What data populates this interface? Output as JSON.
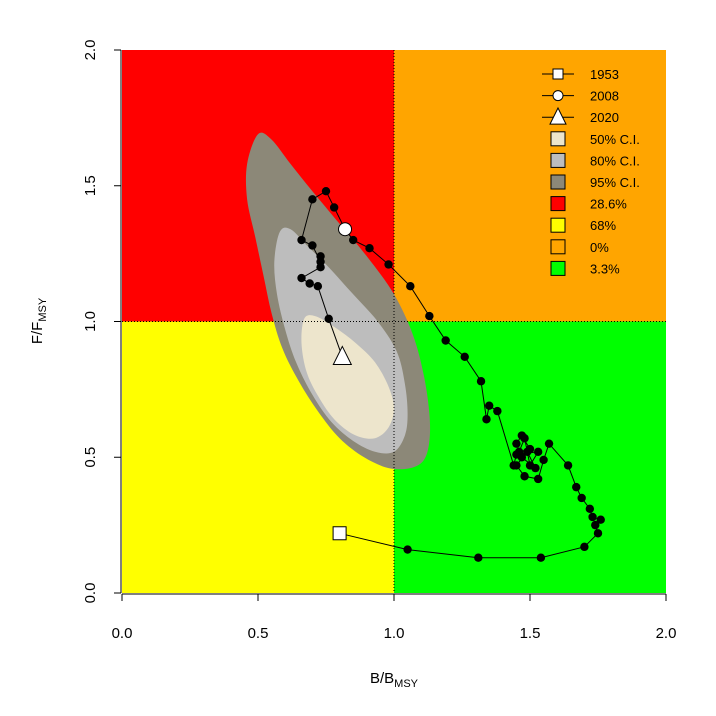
{
  "chart_data": {
    "type": "scatter",
    "xlabel": "B/B",
    "xlabel_sub": "MSY",
    "ylabel": "F/F",
    "ylabel_sub": "MSY",
    "xlim": [
      0,
      2
    ],
    "ylim": [
      0,
      2
    ],
    "x_ticks": [
      "0.0",
      "0.5",
      "1.0",
      "1.5",
      "2.0"
    ],
    "y_ticks": [
      "0.0",
      "0.5",
      "1.0",
      "1.5",
      "2.0"
    ],
    "reference_lines": {
      "x": 1.0,
      "y": 1.0
    },
    "quadrants": [
      {
        "name": "overfished-and-overfishing",
        "color": "#ff0000",
        "x": [
          0,
          1
        ],
        "y": [
          1,
          2
        ]
      },
      {
        "name": "overfishing-not-overfished",
        "color": "#ffa500",
        "x": [
          1,
          2
        ],
        "y": [
          1,
          2
        ]
      },
      {
        "name": "overfished-not-overfishing",
        "color": "#ffff00",
        "x": [
          0,
          1
        ],
        "y": [
          0,
          1
        ]
      },
      {
        "name": "healthy",
        "color": "#00ff00",
        "x": [
          1,
          2
        ],
        "y": [
          0,
          1
        ]
      }
    ],
    "confidence_regions": [
      {
        "label": "95% C.I.",
        "color": "#8c8878",
        "polygon": [
          [
            0.5,
            1.69
          ],
          [
            0.55,
            1.67
          ],
          [
            0.62,
            1.58
          ],
          [
            0.7,
            1.48
          ],
          [
            0.8,
            1.36
          ],
          [
            0.9,
            1.24
          ],
          [
            1.0,
            1.1
          ],
          [
            1.07,
            0.95
          ],
          [
            1.11,
            0.8
          ],
          [
            1.13,
            0.66
          ],
          [
            1.13,
            0.56
          ],
          [
            1.11,
            0.49
          ],
          [
            1.06,
            0.46
          ],
          [
            0.98,
            0.46
          ],
          [
            0.89,
            0.5
          ],
          [
            0.8,
            0.57
          ],
          [
            0.72,
            0.67
          ],
          [
            0.65,
            0.78
          ],
          [
            0.59,
            0.9
          ],
          [
            0.55,
            1.03
          ],
          [
            0.52,
            1.17
          ],
          [
            0.49,
            1.31
          ],
          [
            0.46,
            1.45
          ],
          [
            0.46,
            1.58
          ]
        ]
      },
      {
        "label": "80% C.I.",
        "color": "#bdbdbd",
        "polygon": [
          [
            0.58,
            1.33
          ],
          [
            0.62,
            1.34
          ],
          [
            0.68,
            1.28
          ],
          [
            0.76,
            1.2
          ],
          [
            0.85,
            1.1
          ],
          [
            0.94,
            1.0
          ],
          [
            1.01,
            0.89
          ],
          [
            1.04,
            0.77
          ],
          [
            1.05,
            0.66
          ],
          [
            1.04,
            0.58
          ],
          [
            1.0,
            0.52
          ],
          [
            0.93,
            0.52
          ],
          [
            0.85,
            0.56
          ],
          [
            0.77,
            0.63
          ],
          [
            0.7,
            0.73
          ],
          [
            0.64,
            0.85
          ],
          [
            0.6,
            0.97
          ],
          [
            0.57,
            1.1
          ],
          [
            0.56,
            1.22
          ]
        ]
      },
      {
        "label": "50% C.I.",
        "color": "#ede5cc",
        "polygon": [
          [
            0.67,
            1.01
          ],
          [
            0.71,
            1.02
          ],
          [
            0.78,
            0.98
          ],
          [
            0.86,
            0.92
          ],
          [
            0.93,
            0.85
          ],
          [
            0.98,
            0.76
          ],
          [
            1.0,
            0.68
          ],
          [
            0.98,
            0.61
          ],
          [
            0.93,
            0.57
          ],
          [
            0.86,
            0.58
          ],
          [
            0.79,
            0.63
          ],
          [
            0.73,
            0.71
          ],
          [
            0.68,
            0.81
          ],
          [
            0.66,
            0.92
          ]
        ]
      }
    ],
    "trajectory": [
      [
        0.8,
        0.22
      ],
      [
        1.05,
        0.16
      ],
      [
        1.31,
        0.13
      ],
      [
        1.54,
        0.13
      ],
      [
        1.7,
        0.17
      ],
      [
        1.75,
        0.22
      ],
      [
        1.74,
        0.25
      ],
      [
        1.76,
        0.27
      ],
      [
        1.73,
        0.28
      ],
      [
        1.72,
        0.31
      ],
      [
        1.69,
        0.35
      ],
      [
        1.67,
        0.39
      ],
      [
        1.64,
        0.47
      ],
      [
        1.57,
        0.55
      ],
      [
        1.55,
        0.49
      ],
      [
        1.53,
        0.42
      ],
      [
        1.48,
        0.43
      ],
      [
        1.45,
        0.47
      ],
      [
        1.49,
        0.52
      ],
      [
        1.52,
        0.46
      ],
      [
        1.47,
        0.5
      ],
      [
        1.45,
        0.55
      ],
      [
        1.47,
        0.58
      ],
      [
        1.5,
        0.53
      ],
      [
        1.46,
        0.52
      ],
      [
        1.48,
        0.57
      ],
      [
        1.5,
        0.47
      ],
      [
        1.53,
        0.52
      ],
      [
        1.45,
        0.51
      ],
      [
        1.44,
        0.47
      ],
      [
        1.38,
        0.67
      ],
      [
        1.35,
        0.69
      ],
      [
        1.34,
        0.64
      ],
      [
        1.32,
        0.78
      ],
      [
        1.26,
        0.87
      ],
      [
        1.19,
        0.93
      ],
      [
        1.13,
        1.02
      ],
      [
        1.06,
        1.13
      ],
      [
        0.98,
        1.21
      ],
      [
        0.91,
        1.27
      ],
      [
        0.85,
        1.3
      ],
      [
        0.82,
        1.34
      ],
      [
        0.78,
        1.42
      ],
      [
        0.75,
        1.48
      ],
      [
        0.7,
        1.45
      ],
      [
        0.66,
        1.3
      ],
      [
        0.7,
        1.28
      ],
      [
        0.73,
        1.22
      ],
      [
        0.73,
        1.24
      ],
      [
        0.73,
        1.2
      ],
      [
        0.66,
        1.16
      ],
      [
        0.69,
        1.14
      ],
      [
        0.72,
        1.13
      ],
      [
        0.76,
        1.01
      ],
      [
        0.81,
        0.87
      ]
    ],
    "markers": [
      {
        "label": "1953",
        "shape": "square",
        "x": 0.8,
        "y": 0.22
      },
      {
        "label": "2008",
        "shape": "circle",
        "x": 0.82,
        "y": 1.34
      },
      {
        "label": "2020",
        "shape": "triangle",
        "x": 0.81,
        "y": 0.87
      }
    ],
    "legend": {
      "placement": "top-right",
      "entries": [
        {
          "label": "1953",
          "kind": "line-square"
        },
        {
          "label": "2008",
          "kind": "line-circle"
        },
        {
          "label": "2020",
          "kind": "line-triangle"
        },
        {
          "label": "50% C.I.",
          "kind": "box",
          "color": "#ede5cc"
        },
        {
          "label": "80% C.I.",
          "kind": "box",
          "color": "#bdbdbd"
        },
        {
          "label": "95% C.I.",
          "kind": "box",
          "color": "#8c8878"
        },
        {
          "label": "28.6%",
          "kind": "box",
          "color": "#ff0000"
        },
        {
          "label": "68%",
          "kind": "box",
          "color": "#ffff00"
        },
        {
          "label": "0%",
          "kind": "box",
          "color": "#ffa500"
        },
        {
          "label": "3.3%",
          "kind": "box",
          "color": "#00ff00"
        }
      ]
    }
  }
}
